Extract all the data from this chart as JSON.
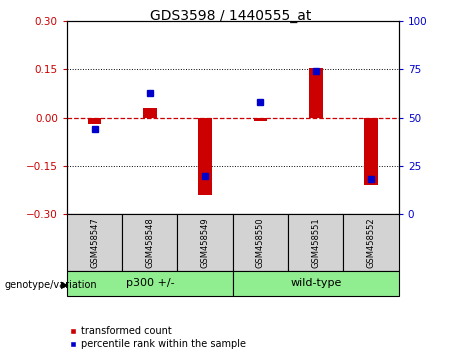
{
  "title": "GDS3598 / 1440555_at",
  "samples": [
    "GSM458547",
    "GSM458548",
    "GSM458549",
    "GSM458550",
    "GSM458551",
    "GSM458552"
  ],
  "transformed_counts": [
    -0.02,
    0.03,
    -0.24,
    -0.01,
    0.155,
    -0.21
  ],
  "percentile_ranks": [
    44,
    63,
    20,
    58,
    74,
    18
  ],
  "group1_label": "p300 +/-",
  "group1_indices": [
    0,
    1,
    2
  ],
  "group2_label": "wild-type",
  "group2_indices": [
    3,
    4,
    5
  ],
  "group_color": "#90ee90",
  "ylim_left": [
    -0.3,
    0.3
  ],
  "ylim_right": [
    0,
    100
  ],
  "yticks_left": [
    -0.3,
    -0.15,
    0,
    0.15,
    0.3
  ],
  "yticks_right": [
    0,
    25,
    50,
    75,
    100
  ],
  "bar_color": "#cc0000",
  "dot_color": "#0000cc",
  "zero_line_color": "#cc0000",
  "label_box_color": "#d3d3d3",
  "legend_items": [
    "transformed count",
    "percentile rank within the sample"
  ],
  "genotype_label": "genotype/variation"
}
